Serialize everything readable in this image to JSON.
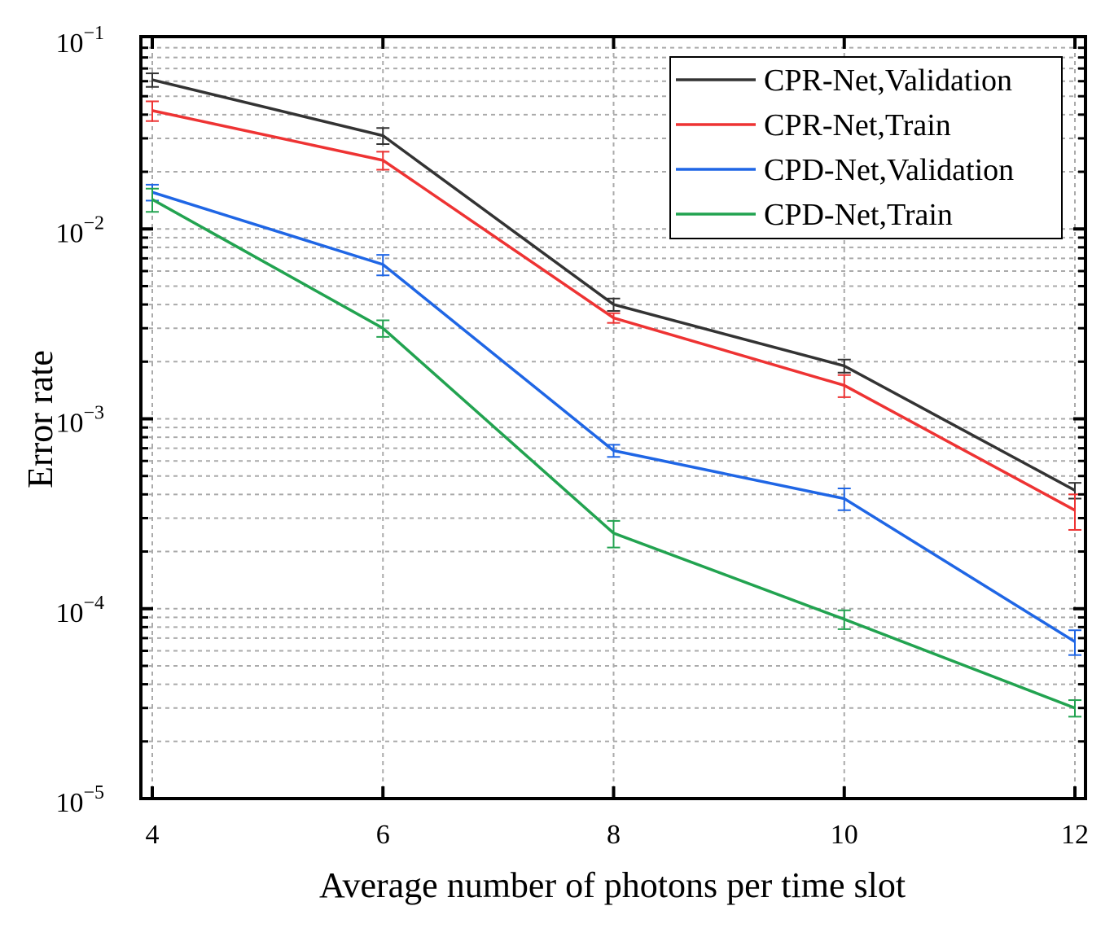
{
  "chart_data": {
    "type": "line",
    "title": "",
    "xlabel": "Average number of photons per time slot",
    "ylabel": "Error rate",
    "yscale": "log",
    "xlim": [
      3.9,
      12.1
    ],
    "ylim": [
      1e-05,
      0.1
    ],
    "grid": true,
    "legend_position": "top-right",
    "x": [
      4,
      6,
      8,
      10,
      12
    ],
    "x_ticks": [
      "4",
      "6",
      "8",
      "10",
      "12"
    ],
    "y_ticks": [
      {
        "base": "10",
        "exp": "−1",
        "value": 0.1
      },
      {
        "base": "10",
        "exp": "−2",
        "value": 0.01
      },
      {
        "base": "10",
        "exp": "−3",
        "value": 0.001
      },
      {
        "base": "10",
        "exp": "−4",
        "value": 0.0001
      },
      {
        "base": "10",
        "exp": "−5",
        "value": 1e-05
      }
    ],
    "series": [
      {
        "name": "CPR-Net,Validation",
        "color": "#333333",
        "values": [
          0.061,
          0.031,
          0.004,
          0.0019,
          0.00042
        ],
        "err": [
          0.005,
          0.003,
          0.0003,
          0.00015,
          4e-05
        ]
      },
      {
        "name": "CPR-Net,Train",
        "color": "#ee3333",
        "values": [
          0.042,
          0.023,
          0.0034,
          0.0015,
          0.00033
        ],
        "err": [
          0.005,
          0.0025,
          0.0002,
          0.0002,
          7e-05
        ]
      },
      {
        "name": "CPD-Net,Validation",
        "color": "#1f66e5",
        "values": [
          0.0156,
          0.0065,
          0.00068,
          0.00038,
          6.7e-05
        ],
        "err": [
          0.0015,
          0.0008,
          5e-05,
          5e-05,
          1e-05
        ]
      },
      {
        "name": "CPD-Net,Train",
        "color": "#22a350",
        "values": [
          0.0143,
          0.003,
          0.00025,
          8.8e-05,
          3e-05
        ],
        "err": [
          0.002,
          0.0003,
          4e-05,
          1e-05,
          3e-06
        ]
      }
    ]
  }
}
